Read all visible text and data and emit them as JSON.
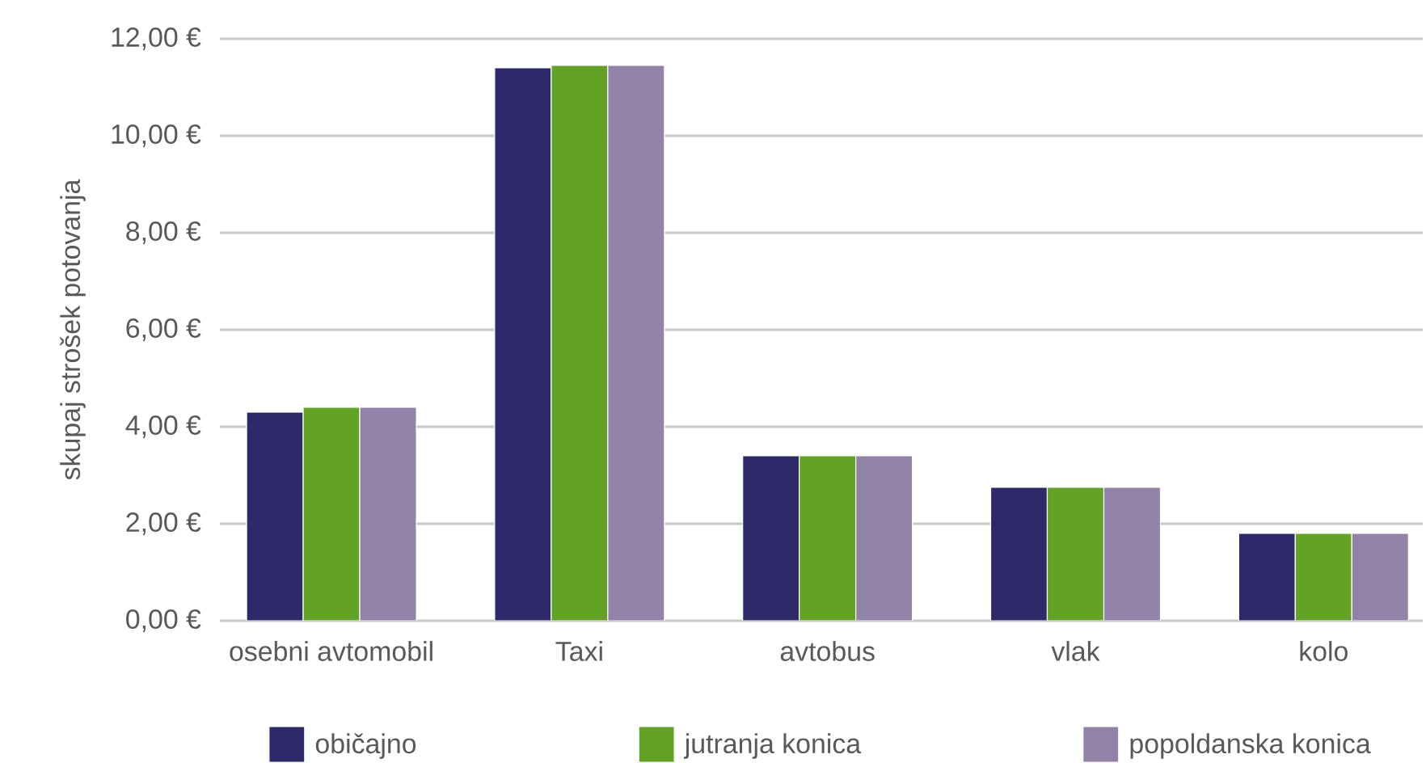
{
  "chart_data": {
    "type": "bar",
    "ylabel": "skupaj strošek potovanja",
    "categories": [
      "osebni avtomobil",
      "Taxi",
      "avtobus",
      "vlak",
      "kolo"
    ],
    "series": [
      {
        "name": "običajno",
        "color": "#2e2a6a",
        "values": [
          4.3,
          11.4,
          3.4,
          2.75,
          1.8
        ]
      },
      {
        "name": "jutranja konica",
        "color": "#62a224",
        "values": [
          4.4,
          11.45,
          3.4,
          2.75,
          1.8
        ]
      },
      {
        "name": "popoldanska konica",
        "color": "#9282a7",
        "values": [
          4.4,
          11.45,
          3.4,
          2.75,
          1.8
        ]
      }
    ],
    "ylim": [
      0,
      12
    ],
    "yticks": [
      {
        "value": 0,
        "label": "0,00 €"
      },
      {
        "value": 2,
        "label": "2,00 €"
      },
      {
        "value": 4,
        "label": "4,00 €"
      },
      {
        "value": 6,
        "label": "6,00 €"
      },
      {
        "value": 8,
        "label": "8,00 €"
      },
      {
        "value": 10,
        "label": "10,00 €"
      },
      {
        "value": 12,
        "label": "12,00 €"
      }
    ],
    "grid": "y",
    "legend": "bottom"
  }
}
